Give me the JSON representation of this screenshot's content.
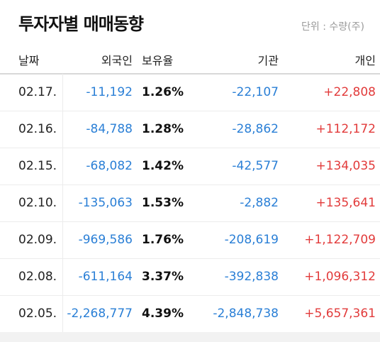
{
  "title": "투자자별 매매동향",
  "unit_label": "단위 : 수량(주)",
  "columns": {
    "date": "날짜",
    "foreign": "외국인",
    "ratio": "보유율",
    "institution": "기관",
    "individual": "개인"
  },
  "rows": [
    {
      "date": "02.17.",
      "foreign": "-11,192",
      "ratio": "1.26%",
      "institution": "-22,107",
      "individual": "+22,808"
    },
    {
      "date": "02.16.",
      "foreign": "-84,788",
      "ratio": "1.28%",
      "institution": "-28,862",
      "individual": "+112,172"
    },
    {
      "date": "02.15.",
      "foreign": "-68,082",
      "ratio": "1.42%",
      "institution": "-42,577",
      "individual": "+134,035"
    },
    {
      "date": "02.10.",
      "foreign": "-135,063",
      "ratio": "1.53%",
      "institution": "-2,882",
      "individual": "+135,641"
    },
    {
      "date": "02.09.",
      "foreign": "-969,586",
      "ratio": "1.76%",
      "institution": "-208,619",
      "individual": "+1,122,709"
    },
    {
      "date": "02.08.",
      "foreign": "-611,164",
      "ratio": "3.37%",
      "institution": "-392,838",
      "individual": "+1,096,312"
    },
    {
      "date": "02.05.",
      "foreign": "-2,268,777",
      "ratio": "4.39%",
      "institution": "-2,848,738",
      "individual": "+5,657,361"
    }
  ],
  "colors": {
    "negative": "#2a7fd6",
    "positive": "#e23b3b"
  }
}
